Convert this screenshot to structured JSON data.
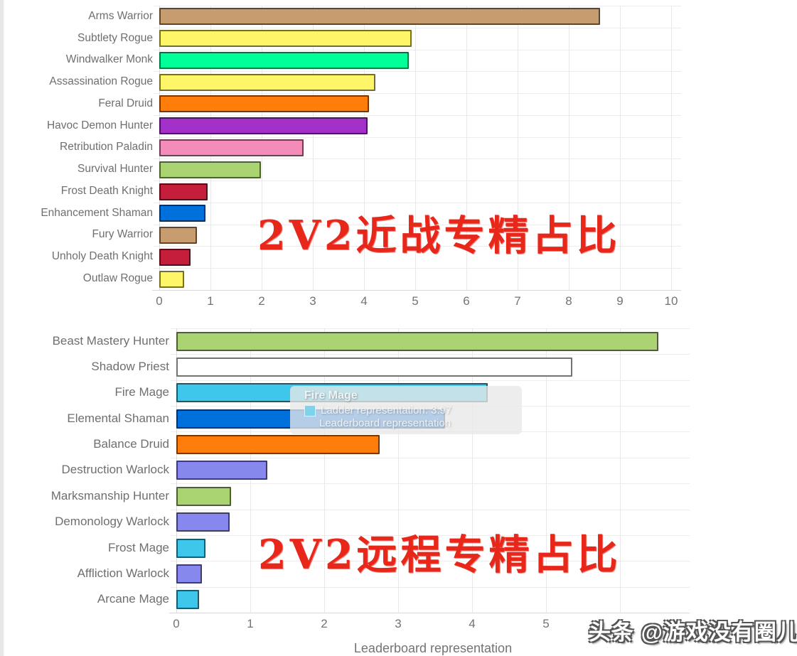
{
  "watermark": {
    "text": "头条 @游戏没有圈儿"
  },
  "tooltip": {
    "title": "Fire Mage",
    "line1_label": "Ladder representation: 3.97",
    "line2_label": "Leaderboard representation",
    "swatch_color": "#7dd3ec"
  },
  "palette": {
    "warrior": "#C79C6E",
    "rogue": "#FFF569",
    "monk": "#00FF98",
    "druid": "#FF7D0A",
    "demon_hunter": "#A330C9",
    "paladin": "#F48CBA",
    "hunter": "#AAD372",
    "death_knight": "#C41E3A",
    "shaman": "#0070DD",
    "mage": "#3FC7EB",
    "warlock": "#8788EE",
    "priest": "#FFFFFF",
    "overlay_red": "#e7271a"
  },
  "chart_data": [
    {
      "type": "bar",
      "orientation": "horizontal",
      "title_overlay": "2V2近战专精占比",
      "xlabel": "",
      "categories": [
        "Arms Warrior",
        "Subtlety Rogue",
        "Windwalker Monk",
        "Assassination Rogue",
        "Feral Druid",
        "Havoc Demon Hunter",
        "Retribution Paladin",
        "Survival Hunter",
        "Frost Death Knight",
        "Enhancement Shaman",
        "Fury Warrior",
        "Unholy Death Knight",
        "Outlaw Rogue"
      ],
      "values": [
        8.61,
        4.93,
        4.88,
        4.22,
        4.1,
        4.07,
        2.82,
        1.99,
        0.94,
        0.9,
        0.73,
        0.61,
        0.48
      ],
      "colors": [
        "#C79C6E",
        "#FFF569",
        "#00FF98",
        "#FFF569",
        "#FF7D0A",
        "#A330C9",
        "#F48CBA",
        "#AAD372",
        "#C41E3A",
        "#0070DD",
        "#C79C6E",
        "#C41E3A",
        "#FFF569"
      ],
      "xlim": [
        0,
        10.2
      ],
      "xticks": [
        0,
        1,
        2,
        3,
        4,
        5,
        6,
        7,
        8,
        9,
        10
      ],
      "grid": true,
      "legend": "none"
    },
    {
      "type": "bar",
      "orientation": "horizontal",
      "title_overlay": "2V2远程专精占比",
      "xlabel": "Leaderboard representation",
      "categories": [
        "Beast Mastery Hunter",
        "Shadow Priest",
        "Fire Mage",
        "Elemental Shaman",
        "Balance Druid",
        "Destruction Warlock",
        "Marksmanship Hunter",
        "Demonology Warlock",
        "Frost Mage",
        "Affliction Warlock",
        "Arcane Mage"
      ],
      "values": [
        6.52,
        5.36,
        4.21,
        3.63,
        2.75,
        1.23,
        0.74,
        0.72,
        0.39,
        0.35,
        0.31
      ],
      "colors": [
        "#AAD372",
        "#FFFFFF",
        "#3FC7EB",
        "#0070DD",
        "#FF7D0A",
        "#8788EE",
        "#AAD372",
        "#8788EE",
        "#3FC7EB",
        "#8788EE",
        "#3FC7EB"
      ],
      "xlim": [
        0,
        6.94
      ],
      "xticks": [
        0,
        1,
        2,
        3,
        4,
        5
      ],
      "grid": true,
      "legend": "none"
    }
  ]
}
